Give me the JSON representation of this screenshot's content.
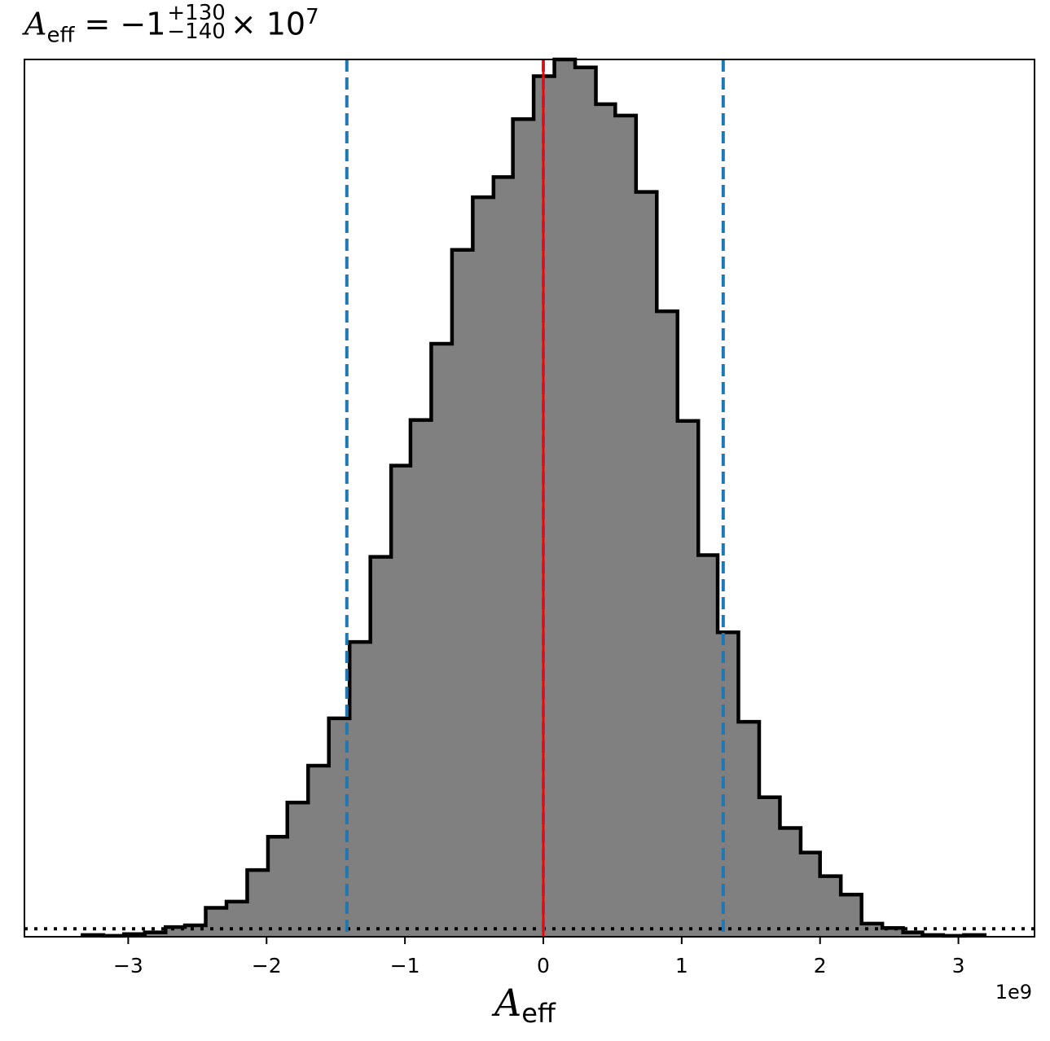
{
  "title": {
    "symbol": "A",
    "subscript": "eff",
    "eq": " = −1",
    "upper": "+130",
    "lower": "−140",
    "multiplier": "× 10",
    "exponent": "7"
  },
  "offset_text": "1e9",
  "chart_data": {
    "type": "histogram",
    "xlabel_symbol": "A",
    "xlabel_subscript": "eff",
    "xlim": [
      -3.75,
      3.55
    ],
    "ylim": [
      0,
      1.0
    ],
    "xticks": [
      -3,
      -2,
      -1,
      0,
      1,
      2,
      3
    ],
    "xtick_labels": [
      "−3",
      "−2",
      "−1",
      "0",
      "1",
      "2",
      "3"
    ],
    "bin_edges": [
      -3.33,
      -3.18,
      -3.03,
      -2.88,
      -2.73,
      -2.59,
      -2.44,
      -2.29,
      -2.14,
      -1.99,
      -1.85,
      -1.7,
      -1.55,
      -1.4,
      -1.25,
      -1.1,
      -0.96,
      -0.81,
      -0.66,
      -0.51,
      -0.36,
      -0.22,
      -0.07,
      0.08,
      0.23,
      0.38,
      0.52,
      0.67,
      0.82,
      0.97,
      1.12,
      1.26,
      1.41,
      1.56,
      1.71,
      1.86,
      2.0,
      2.15,
      2.3,
      2.45,
      2.6,
      2.74,
      2.89,
      3.04,
      3.19
    ],
    "heights": [
      0.002,
      0.001,
      0.003,
      0.005,
      0.011,
      0.013,
      0.033,
      0.04,
      0.076,
      0.114,
      0.153,
      0.195,
      0.249,
      0.336,
      0.433,
      0.537,
      0.589,
      0.676,
      0.783,
      0.843,
      0.866,
      0.932,
      0.981,
      1.009,
      0.991,
      0.949,
      0.936,
      0.849,
      0.713,
      0.588,
      0.435,
      0.347,
      0.245,
      0.159,
      0.124,
      0.096,
      0.069,
      0.048,
      0.015,
      0.01,
      0.005,
      0.002,
      0.001,
      0.002
    ],
    "fill_color": "#808080",
    "edge_color": "#000000",
    "quantile_lines": [
      -1.42,
      0.0,
      1.3
    ],
    "quantile_color": "#1f77b4",
    "truth_line": 0.0,
    "truth_color": "#ff0000",
    "prior_level": 0.009,
    "grid": false
  }
}
